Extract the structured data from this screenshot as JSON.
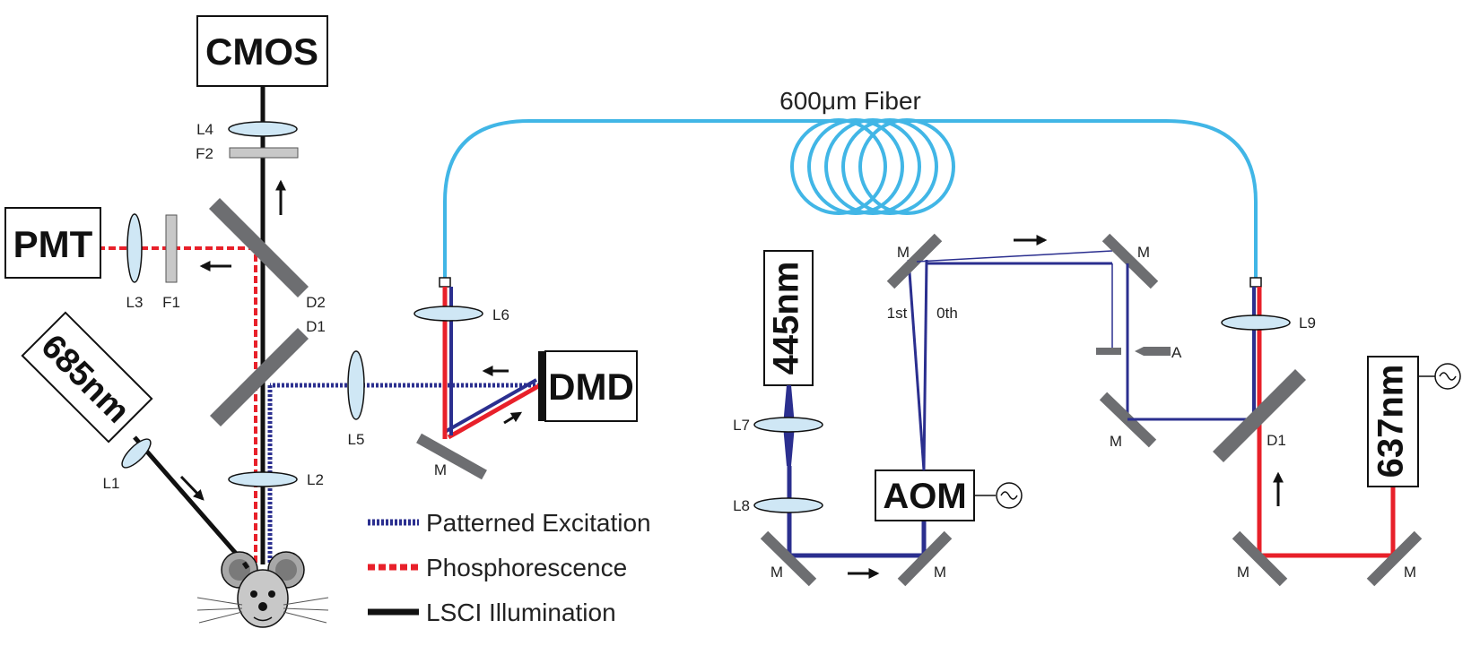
{
  "boxes": {
    "cmos": "CMOS",
    "pmt": "PMT",
    "laser685": "685nm",
    "dmd": "DMD",
    "laser445": "445nm",
    "aom": "AOM",
    "laser637": "637nm"
  },
  "fiber_label": "600μm Fiber",
  "components": {
    "L1": "L1",
    "L2": "L2",
    "L3": "L3",
    "L4": "L4",
    "L5": "L5",
    "L6": "L6",
    "L7": "L7",
    "L8": "L8",
    "L9": "L9",
    "F1": "F1",
    "F2": "F2",
    "D1": "D1",
    "D2": "D2",
    "A": "A",
    "M": "M",
    "order1": "1st",
    "order0": "0th"
  },
  "legend": {
    "patterned": "Patterned Excitation",
    "phosphorescence": "Phosphorescence",
    "lsci": "LSCI Illumination"
  },
  "colors": {
    "blue_beam": "#2b2f8f",
    "red_beam": "#e8202a",
    "black_beam": "#111111",
    "fiber": "#41b6e6",
    "lens_fill": "#cfe7f5",
    "mirror": "#6d6e71",
    "filter": "#c8c8c8"
  }
}
